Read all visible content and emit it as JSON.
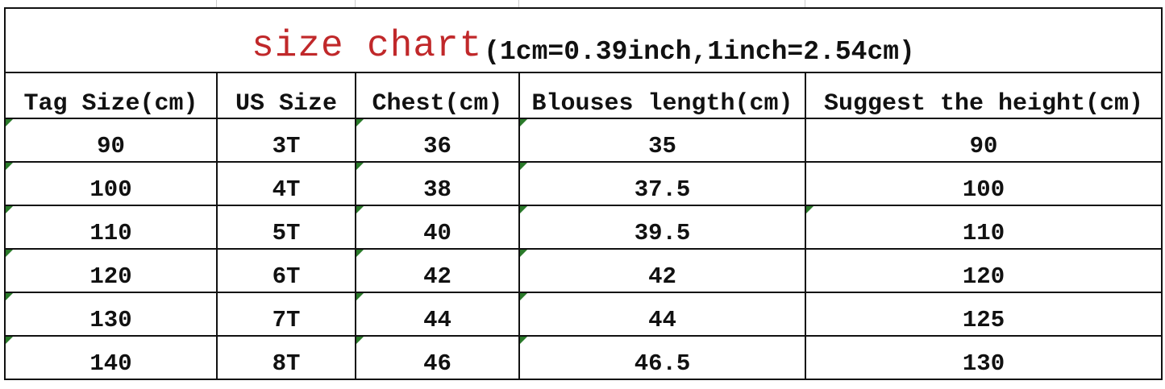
{
  "title": {
    "main": "size chart",
    "conversion": "(1cm=0.39inch,1inch=2.54cm)"
  },
  "colors": {
    "title": "#c0282a",
    "error_indicator": "#2a7a2a"
  },
  "headers": [
    "Tag Size(cm)",
    "US Size",
    "Chest(cm)",
    "Blouses length(cm)",
    "Suggest the height(cm)"
  ],
  "rows": [
    [
      "90",
      "3T",
      "36",
      "35",
      "90"
    ],
    [
      "100",
      "4T",
      "38",
      "37.5",
      "100"
    ],
    [
      "110",
      "5T",
      "40",
      "39.5",
      "110"
    ],
    [
      "120",
      "6T",
      "42",
      "42",
      "120"
    ],
    [
      "130",
      "7T",
      "44",
      "44",
      "125"
    ],
    [
      "140",
      "8T",
      "46",
      "46.5",
      "130"
    ]
  ]
}
